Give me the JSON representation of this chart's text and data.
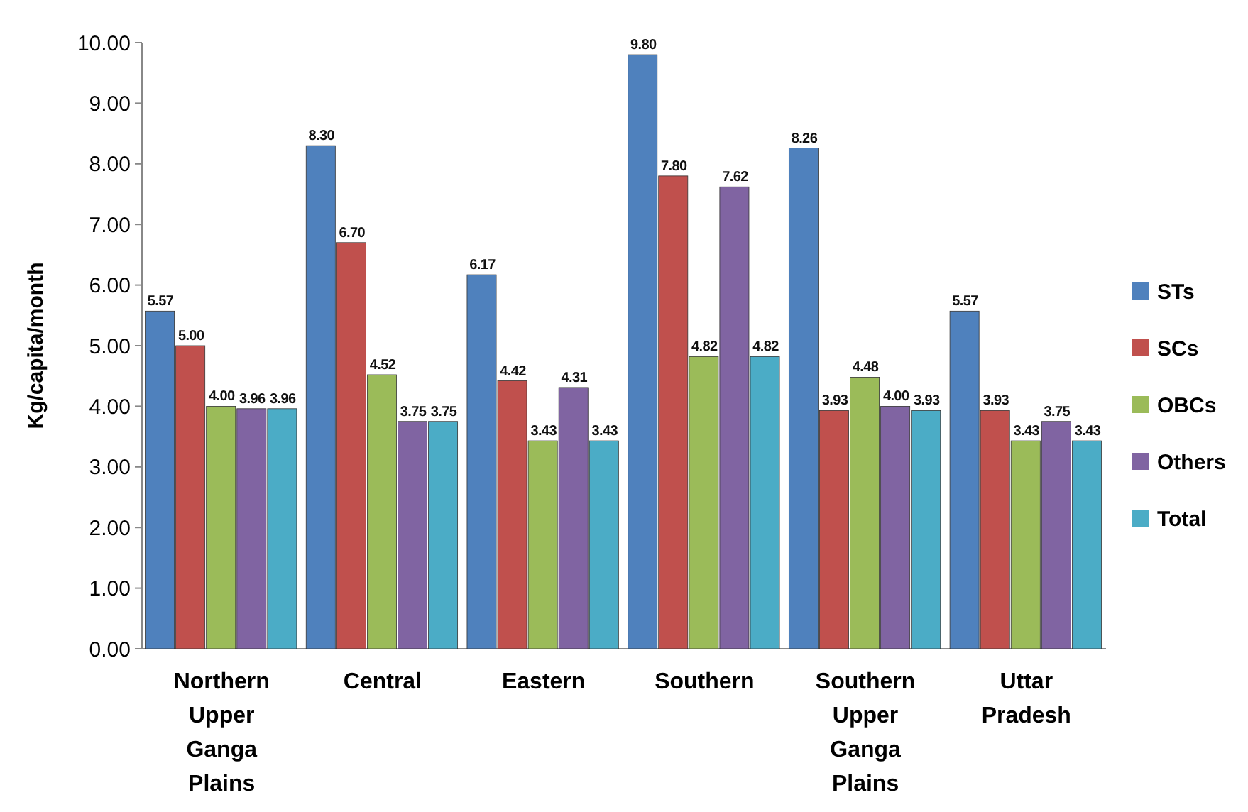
{
  "chart_data": {
    "type": "bar",
    "ylabel": "Kg/capita/month",
    "categories": [
      "Northern Upper Ganga Plains",
      "Central",
      "Eastern",
      "Southern",
      "Southern Upper Ganga Plains",
      "Uttar Pradesh"
    ],
    "series": [
      {
        "name": "STs",
        "color": "#4f81bd",
        "values": [
          5.57,
          8.3,
          6.17,
          9.8,
          8.26,
          5.57
        ],
        "value_labels": [
          "5.57",
          "8.30",
          "6.17",
          "9.80",
          "8.26",
          "5.57"
        ]
      },
      {
        "name": "SCs",
        "color": "#c0504d",
        "values": [
          5.0,
          6.7,
          4.42,
          7.8,
          3.93,
          3.93
        ],
        "value_labels": [
          "5.00",
          "6.70",
          "4.42",
          "7.80",
          "3.93",
          "3.93"
        ]
      },
      {
        "name": "OBCs",
        "color": "#9bbb59",
        "values": [
          4.0,
          4.52,
          3.43,
          4.82,
          4.48,
          3.43
        ],
        "value_labels": [
          "4.00",
          "4.52",
          "3.43",
          "4.82",
          "4.48",
          "3.43"
        ]
      },
      {
        "name": "Others",
        "color": "#8064a2",
        "values": [
          3.96,
          3.75,
          4.31,
          7.62,
          4.0,
          3.75
        ],
        "value_labels": [
          "3.96",
          "3.75",
          "4.31",
          "7.62",
          "4.00",
          "3.75"
        ]
      },
      {
        "name": "Total",
        "color": "#4bacc6",
        "values": [
          3.96,
          3.75,
          3.43,
          4.82,
          3.93,
          3.43
        ],
        "value_labels": [
          "3.96",
          "3.75",
          "3.43",
          "4.82",
          "3.93",
          "3.43"
        ]
      }
    ],
    "ylim": [
      0,
      10
    ],
    "yticks": [
      {
        "value": 0,
        "label": "0.00"
      },
      {
        "value": 1,
        "label": "1.00"
      },
      {
        "value": 2,
        "label": "2.00"
      },
      {
        "value": 3,
        "label": "3.00"
      },
      {
        "value": 4,
        "label": "4.00"
      },
      {
        "value": 5,
        "label": "5.00"
      },
      {
        "value": 6,
        "label": "6.00"
      },
      {
        "value": 7,
        "label": "7.00"
      },
      {
        "value": 8,
        "label": "8.00"
      },
      {
        "value": 9,
        "label": "9.00"
      },
      {
        "value": 10,
        "label": "10.00"
      }
    ],
    "legend": "right"
  }
}
